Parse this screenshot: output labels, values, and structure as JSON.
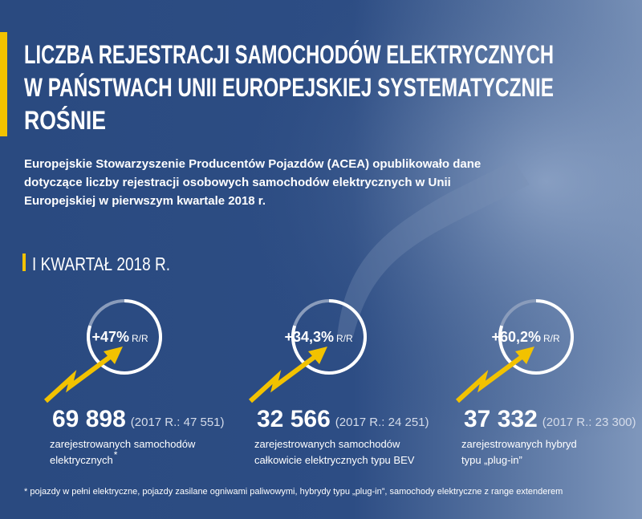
{
  "title": {
    "lines": [
      "LICZBA REJESTRACJI SAMOCHODÓW ELEKTRYCZNYCH",
      "W PAŃSTWACH UNII EUROPEJSKIEJ SYSTEMATYCZNIE",
      "ROŚNIE"
    ]
  },
  "intro": {
    "lines": [
      "Europejskie Stowarzyszenie Producentów Pojazdów (ACEA) opublikowało dane",
      "dotyczące liczby rejestracji osobowych samochodów elektrycznych w Unii",
      "Europejskiej w pierwszym kwartale 2018 r."
    ]
  },
  "section": "I KWARTAŁ 2018 R.",
  "stats": [
    {
      "growth": "+47%",
      "unit": "R/R",
      "value": "69 898",
      "previous": "(2017 R.: 47 551)",
      "description": [
        "zarejestrowanych samochodów",
        "elektrycznych"
      ],
      "footnote_mark": "*"
    },
    {
      "growth": "+34,3%",
      "unit": "R/R",
      "value": "32 566",
      "previous": "(2017 R.: 24 251)",
      "description": [
        "zarejestrowanych samochodów",
        "całkowicie elektrycznych typu BEV"
      ]
    },
    {
      "growth": "+60,2%",
      "unit": "R/R",
      "value": "37 332",
      "previous": "(2017 R.: 23 300)",
      "description": [
        "zarejestrowanych hybryd",
        "typu „plug-in”"
      ]
    }
  ],
  "footnote": "* pojazdy w pełni elektryczne, pojazdy zasilane ogniwami paliwowymi, hybrydy typu „plug-in”, samochody elektryczne z range extenderem"
}
